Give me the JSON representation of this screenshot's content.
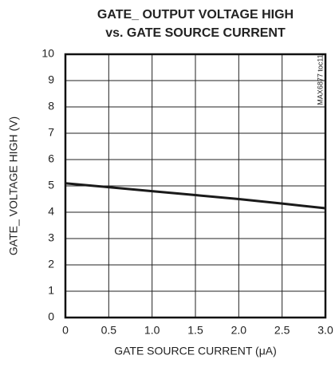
{
  "chart_data": {
    "type": "line",
    "title": [
      "GATE_ OUTPUT VOLTAGE HIGH",
      "vs. GATE SOURCE CURRENT"
    ],
    "x_label": "GATE SOURCE CURRENT (μA)",
    "y_label": "GATE_ VOLTAGE HIGH (V)",
    "annotation": "MAX6877 toc11",
    "x": [
      0,
      0.5,
      1,
      1.5,
      2,
      2.5,
      3
    ],
    "values": [
      5.1,
      4.95,
      4.8,
      4.65,
      4.5,
      4.33,
      4.15
    ],
    "color": "#1a1a1a",
    "xlim": [
      0,
      3
    ],
    "xticks": [
      0,
      0.5,
      {
        "value": 1,
        "label": "1.0"
      },
      1.5,
      {
        "value": 2,
        "label": "2.0"
      },
      2.5,
      {
        "value": 3,
        "label": "3.0"
      }
    ],
    "ylim": [
      0,
      10
    ],
    "yticks": [
      0,
      1,
      2,
      3,
      4,
      5,
      6,
      7,
      8,
      9,
      10
    ],
    "grid": true
  }
}
